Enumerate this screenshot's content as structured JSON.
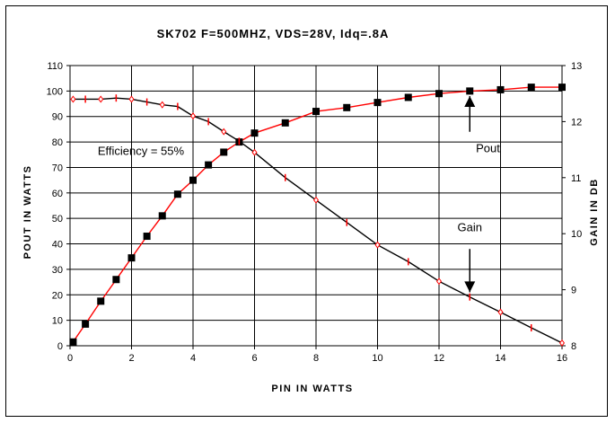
{
  "chart_data": {
    "type": "line",
    "title": "SK702 F=500MHZ, VDS=28V, Idq=.8A",
    "xlabel": "PIN IN WATTS",
    "ylabel": "POUT IN WATTS",
    "y2label": "GAIN IN DB",
    "xlim": [
      0,
      16
    ],
    "ylim": [
      0,
      110
    ],
    "y2lim": [
      8,
      13
    ],
    "x_ticks": [
      "0",
      "2",
      "4",
      "6",
      "8",
      "10",
      "12",
      "14",
      "16"
    ],
    "y_ticks": [
      "0",
      "10",
      "20",
      "30",
      "40",
      "50",
      "60",
      "70",
      "80",
      "90",
      "100",
      "110"
    ],
    "y2_ticks": [
      "8",
      "9",
      "10",
      "11",
      "12",
      "13"
    ],
    "grid": true,
    "series": [
      {
        "name": "Pout",
        "axis": "left",
        "color": "#ff0000",
        "marker": "square",
        "marker_color": "#000000",
        "x": [
          0.1,
          0.5,
          1,
          1.5,
          2,
          2.5,
          3,
          3.5,
          4,
          4.5,
          5,
          5.5,
          6,
          7,
          8,
          9,
          10,
          11,
          12,
          13,
          14,
          15,
          16
        ],
        "y": [
          1.5,
          8.5,
          17.5,
          26,
          34.5,
          43,
          51,
          59.5,
          65,
          71,
          76,
          80,
          83.5,
          87.5,
          92,
          93.5,
          95.5,
          97.5,
          99,
          100,
          100.5,
          101.5,
          101.5
        ]
      },
      {
        "name": "Gain",
        "axis": "right",
        "color": "#000000",
        "marker": "diamond",
        "marker_color": "#ff0000",
        "x": [
          0.1,
          0.5,
          1,
          1.5,
          2,
          2.5,
          3,
          3.5,
          4,
          4.5,
          5,
          5.5,
          6,
          7,
          8,
          9,
          10,
          11,
          12,
          13,
          14,
          15,
          16
        ],
        "y": [
          12.4,
          12.4,
          12.4,
          12.42,
          12.4,
          12.35,
          12.3,
          12.27,
          12.1,
          12.0,
          11.82,
          11.65,
          11.45,
          11.0,
          10.6,
          10.2,
          9.8,
          9.5,
          9.15,
          8.87,
          8.6,
          8.32,
          8.05
        ]
      }
    ],
    "annotations": [
      {
        "text": "Efficiency = 55%",
        "x": 0.9,
        "y": 75
      },
      {
        "text": "Pout",
        "x": 13.2,
        "y": 76,
        "arrow_to": [
          13,
          98
        ],
        "arrow_from": [
          13,
          84
        ]
      },
      {
        "text": "Gain",
        "x": 12.6,
        "y": 45,
        "arrow_to": [
          13,
          21
        ],
        "arrow_from": [
          13,
          38
        ]
      }
    ]
  }
}
